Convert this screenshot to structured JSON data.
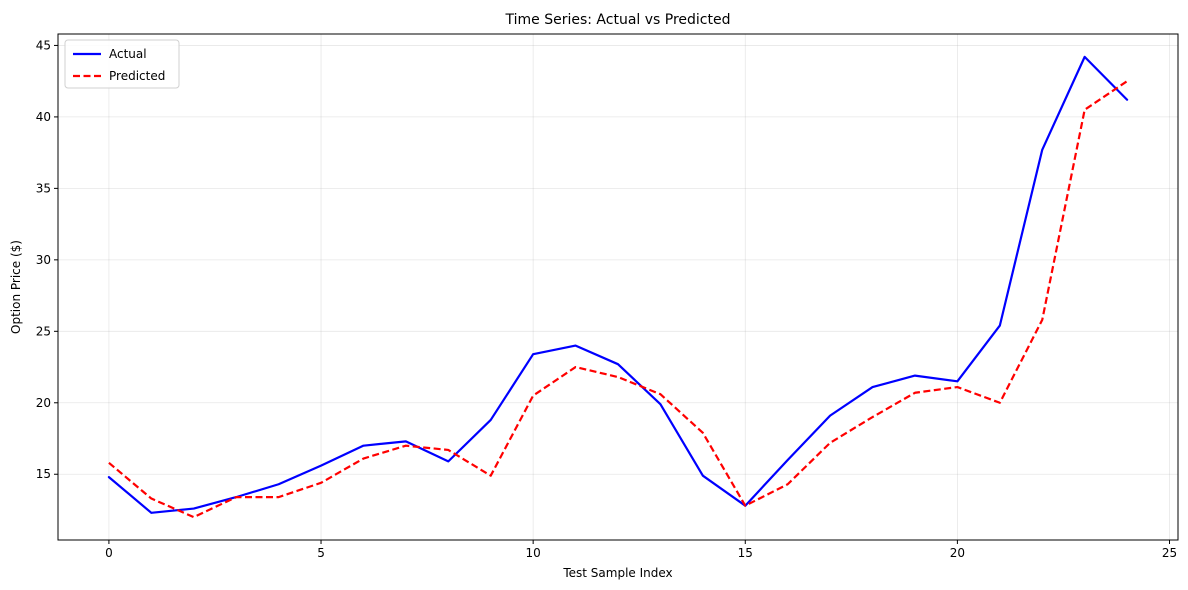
{
  "chart_data": {
    "type": "line",
    "title": "Time Series: Actual vs Predicted",
    "xlabel": "Test Sample Index",
    "ylabel": "Option Price ($)",
    "xlim": [
      -1.2,
      25.2
    ],
    "ylim": [
      10.4,
      45.8
    ],
    "xticks": [
      0,
      5,
      10,
      15,
      20,
      25
    ],
    "yticks": [
      15,
      20,
      25,
      30,
      35,
      40,
      45
    ],
    "grid": true,
    "legend_position": "top-left",
    "x": [
      0,
      1,
      2,
      3,
      4,
      5,
      6,
      7,
      8,
      9,
      10,
      11,
      12,
      13,
      14,
      15,
      16,
      17,
      18,
      19,
      20,
      21,
      22,
      23,
      24
    ],
    "series": [
      {
        "name": "Actual",
        "color": "#0000ff",
        "style": "solid",
        "values": [
          14.8,
          12.3,
          12.6,
          13.4,
          14.3,
          15.6,
          17.0,
          17.3,
          15.9,
          18.8,
          23.4,
          24.0,
          22.7,
          19.9,
          14.9,
          12.8,
          16.0,
          19.1,
          21.1,
          21.9,
          21.5,
          25.4,
          37.7,
          44.2,
          41.2
        ]
      },
      {
        "name": "Predicted",
        "color": "#ff0000",
        "style": "dashed",
        "values": [
          15.8,
          13.3,
          12.0,
          13.4,
          13.4,
          14.4,
          16.1,
          17.0,
          16.7,
          14.9,
          20.5,
          22.5,
          21.8,
          20.6,
          17.9,
          12.8,
          14.3,
          17.2,
          19.0,
          20.7,
          21.1,
          20.0,
          25.8,
          40.5,
          42.5
        ]
      }
    ]
  }
}
